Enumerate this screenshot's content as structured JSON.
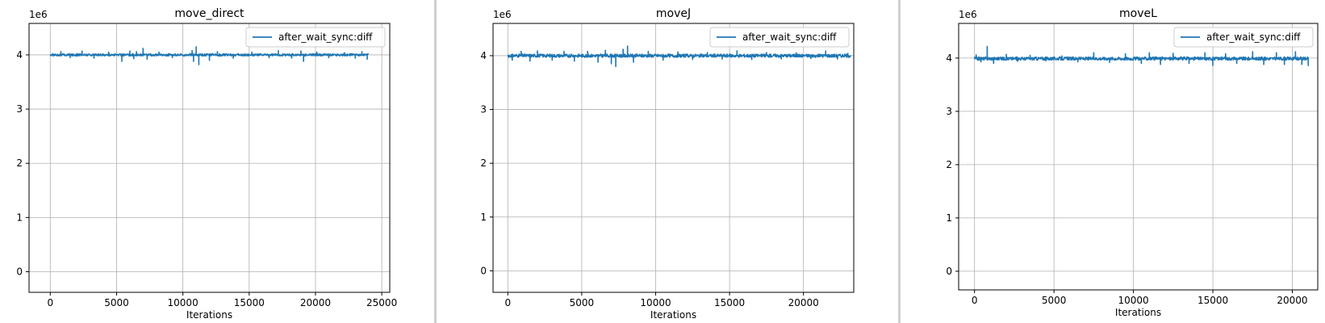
{
  "chart_data": [
    {
      "type": "line",
      "title": "move_direct",
      "xlabel": "Iterations",
      "ylabel": "",
      "yscale_label": "1e6",
      "xlim": [
        -1600,
        25600
      ],
      "ylim": [
        -0.38,
        4.58
      ],
      "xticks": [
        0,
        5000,
        10000,
        15000,
        20000,
        25000
      ],
      "xtick_labels": [
        "0",
        "5000",
        "10000",
        "15000",
        "20000",
        "25000"
      ],
      "yticks": [
        0,
        1,
        2,
        3,
        4
      ],
      "ytick_labels": [
        "0",
        "1",
        "2",
        "3",
        "4"
      ],
      "grid": true,
      "legend_position": "top-right",
      "series": [
        {
          "name": "after_wait_sync:diff",
          "color": "#1f77b4",
          "x_range": [
            0,
            24000
          ],
          "baseline": 4.0,
          "noise_amplitude": 0.02,
          "spikes": [
            {
              "x": 800,
              "y": 4.06
            },
            {
              "x": 1500,
              "y": 3.95
            },
            {
              "x": 2400,
              "y": 4.07
            },
            {
              "x": 3300,
              "y": 3.94
            },
            {
              "x": 4400,
              "y": 4.05
            },
            {
              "x": 5400,
              "y": 3.88
            },
            {
              "x": 6000,
              "y": 4.07
            },
            {
              "x": 6300,
              "y": 3.93
            },
            {
              "x": 6500,
              "y": 4.06
            },
            {
              "x": 7000,
              "y": 4.12
            },
            {
              "x": 7300,
              "y": 3.92
            },
            {
              "x": 8200,
              "y": 4.05
            },
            {
              "x": 9200,
              "y": 3.95
            },
            {
              "x": 10700,
              "y": 4.08
            },
            {
              "x": 10800,
              "y": 3.88
            },
            {
              "x": 11000,
              "y": 4.15
            },
            {
              "x": 11200,
              "y": 3.82
            },
            {
              "x": 12000,
              "y": 3.9
            },
            {
              "x": 12600,
              "y": 4.06
            },
            {
              "x": 13800,
              "y": 3.94
            },
            {
              "x": 15200,
              "y": 4.05
            },
            {
              "x": 16500,
              "y": 3.95
            },
            {
              "x": 17200,
              "y": 4.08
            },
            {
              "x": 18200,
              "y": 3.94
            },
            {
              "x": 18900,
              "y": 4.07
            },
            {
              "x": 19100,
              "y": 3.88
            },
            {
              "x": 20100,
              "y": 4.05
            },
            {
              "x": 21000,
              "y": 3.95
            },
            {
              "x": 22200,
              "y": 4.04
            },
            {
              "x": 23000,
              "y": 3.94
            },
            {
              "x": 23500,
              "y": 4.06
            },
            {
              "x": 23900,
              "y": 3.92
            }
          ]
        }
      ]
    },
    {
      "type": "line",
      "title": "moveJ",
      "xlabel": "Iterations",
      "ylabel": "",
      "yscale_label": "1e6",
      "xlim": [
        -1000,
        23400
      ],
      "ylim": [
        -0.4,
        4.6
      ],
      "xticks": [
        0,
        5000,
        10000,
        15000,
        20000
      ],
      "xtick_labels": [
        "0",
        "5000",
        "10000",
        "15000",
        "20000"
      ],
      "yticks": [
        0,
        1,
        2,
        3,
        4
      ],
      "ytick_labels": [
        "0",
        "1",
        "2",
        "3",
        "4"
      ],
      "grid": true,
      "legend_position": "top-right",
      "series": [
        {
          "name": "after_wait_sync:diff",
          "color": "#1f77b4",
          "x_range": [
            0,
            23200
          ],
          "baseline": 4.0,
          "noise_amplitude": 0.03,
          "spikes": [
            {
              "x": 300,
              "y": 3.92
            },
            {
              "x": 900,
              "y": 4.08
            },
            {
              "x": 1500,
              "y": 3.9
            },
            {
              "x": 2000,
              "y": 4.09
            },
            {
              "x": 3000,
              "y": 3.92
            },
            {
              "x": 3800,
              "y": 4.08
            },
            {
              "x": 4500,
              "y": 3.9
            },
            {
              "x": 5400,
              "y": 4.08
            },
            {
              "x": 6100,
              "y": 3.88
            },
            {
              "x": 6600,
              "y": 4.1
            },
            {
              "x": 7000,
              "y": 3.85
            },
            {
              "x": 7300,
              "y": 3.8
            },
            {
              "x": 7800,
              "y": 4.12
            },
            {
              "x": 8100,
              "y": 4.18
            },
            {
              "x": 8500,
              "y": 3.88
            },
            {
              "x": 9500,
              "y": 4.08
            },
            {
              "x": 10500,
              "y": 3.92
            },
            {
              "x": 11500,
              "y": 4.07
            },
            {
              "x": 12500,
              "y": 3.93
            },
            {
              "x": 13500,
              "y": 4.06
            },
            {
              "x": 14500,
              "y": 3.94
            },
            {
              "x": 15500,
              "y": 4.09
            },
            {
              "x": 16500,
              "y": 3.93
            },
            {
              "x": 17500,
              "y": 4.06
            },
            {
              "x": 18500,
              "y": 3.94
            },
            {
              "x": 19500,
              "y": 4.05
            },
            {
              "x": 20500,
              "y": 3.95
            },
            {
              "x": 21500,
              "y": 4.09
            },
            {
              "x": 22300,
              "y": 3.94
            },
            {
              "x": 23000,
              "y": 4.04
            }
          ]
        }
      ]
    },
    {
      "type": "line",
      "title": "moveL",
      "xlabel": "Iterations",
      "ylabel": "",
      "yscale_label": "1e6",
      "xlim": [
        -1000,
        21600
      ],
      "ylim": [
        -0.35,
        4.65
      ],
      "xticks": [
        0,
        5000,
        10000,
        15000,
        20000
      ],
      "xtick_labels": [
        "0",
        "5000",
        "10000",
        "15000",
        "20000"
      ],
      "yticks": [
        0,
        1,
        2,
        3,
        4
      ],
      "ytick_labels": [
        "0",
        "1",
        "2",
        "3",
        "4"
      ],
      "grid": true,
      "legend_position": "top-right",
      "series": [
        {
          "name": "after_wait_sync:diff",
          "color": "#1f77b4",
          "x_range": [
            0,
            21000
          ],
          "baseline": 3.99,
          "noise_amplitude": 0.03,
          "spikes": [
            {
              "x": 100,
              "y": 4.06
            },
            {
              "x": 400,
              "y": 3.93
            },
            {
              "x": 800,
              "y": 4.22
            },
            {
              "x": 1200,
              "y": 3.9
            },
            {
              "x": 2000,
              "y": 4.07
            },
            {
              "x": 2700,
              "y": 3.94
            },
            {
              "x": 3500,
              "y": 4.05
            },
            {
              "x": 4500,
              "y": 3.95
            },
            {
              "x": 5500,
              "y": 4.04
            },
            {
              "x": 6500,
              "y": 3.93
            },
            {
              "x": 7500,
              "y": 4.1
            },
            {
              "x": 8500,
              "y": 3.92
            },
            {
              "x": 9500,
              "y": 4.08
            },
            {
              "x": 10500,
              "y": 3.9
            },
            {
              "x": 11000,
              "y": 4.1
            },
            {
              "x": 11700,
              "y": 3.88
            },
            {
              "x": 12500,
              "y": 4.09
            },
            {
              "x": 13500,
              "y": 3.9
            },
            {
              "x": 14500,
              "y": 4.1
            },
            {
              "x": 15000,
              "y": 3.86
            },
            {
              "x": 15800,
              "y": 4.08
            },
            {
              "x": 16500,
              "y": 3.9
            },
            {
              "x": 17500,
              "y": 4.12
            },
            {
              "x": 18200,
              "y": 3.88
            },
            {
              "x": 19000,
              "y": 4.1
            },
            {
              "x": 19500,
              "y": 3.88
            },
            {
              "x": 20200,
              "y": 4.12
            },
            {
              "x": 20600,
              "y": 3.88
            },
            {
              "x": 21000,
              "y": 3.86
            }
          ]
        }
      ]
    }
  ]
}
